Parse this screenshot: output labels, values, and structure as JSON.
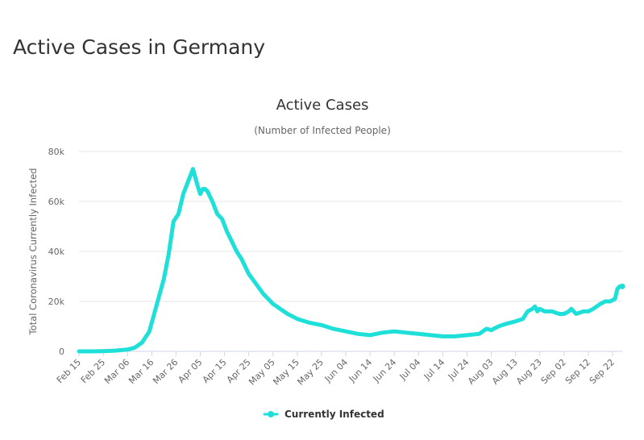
{
  "page": {
    "title": "Active Cases in Germany"
  },
  "colors": {
    "series": "#1ee0d8",
    "grid": "#e6e6e6",
    "axis": "#ccd6eb",
    "text": "#666666"
  },
  "chart_data": {
    "type": "line",
    "title": "Active Cases",
    "subtitle": "(Number of Infected People)",
    "ylabel": "Total Coronavirus Currently Infected",
    "xlabel": "",
    "ylim": [
      0,
      80000
    ],
    "yticks": [
      0,
      20000,
      40000,
      60000,
      80000
    ],
    "ytick_labels": [
      "0",
      "20k",
      "40k",
      "60k",
      "80k"
    ],
    "xtick_labels": [
      "Feb 15",
      "Feb 25",
      "Mar 06",
      "Mar 16",
      "Mar 26",
      "Apr 05",
      "Apr 15",
      "Apr 25",
      "May 05",
      "May 15",
      "May 25",
      "Jun 04",
      "Jun 14",
      "Jun 24",
      "Jul 04",
      "Jul 14",
      "Jul 24",
      "Aug 03",
      "Aug 13",
      "Aug 23",
      "Sep 02",
      "Sep 12",
      "Sep 22"
    ],
    "legend": "bottom-center",
    "grid": true,
    "series": [
      {
        "name": "Currently Infected",
        "x": [
          "Feb 15",
          "Feb 20",
          "Feb 25",
          "Mar 01",
          "Mar 06",
          "Mar 09",
          "Mar 12",
          "Mar 15",
          "Mar 17",
          "Mar 19",
          "Mar 21",
          "Mar 23",
          "Mar 25",
          "Mar 27",
          "Mar 29",
          "Mar 31",
          "Apr 02",
          "Apr 04",
          "Apr 05",
          "Apr 06",
          "Apr 07",
          "Apr 08",
          "Apr 09",
          "Apr 10",
          "Apr 12",
          "Apr 14",
          "Apr 16",
          "Apr 18",
          "Apr 20",
          "Apr 22",
          "Apr 25",
          "Apr 28",
          "May 01",
          "May 03",
          "May 05",
          "May 08",
          "May 11",
          "May 15",
          "May 20",
          "May 25",
          "May 30",
          "Jun 04",
          "Jun 09",
          "Jun 14",
          "Jun 19",
          "Jun 24",
          "Jun 29",
          "Jul 04",
          "Jul 09",
          "Jul 14",
          "Jul 19",
          "Jul 24",
          "Jul 29",
          "Aug 01",
          "Aug 03",
          "Aug 06",
          "Aug 09",
          "Aug 13",
          "Aug 16",
          "Aug 18",
          "Aug 20",
          "Aug 21",
          "Aug 22",
          "Aug 23",
          "Aug 25",
          "Aug 28",
          "Aug 31",
          "Sep 02",
          "Sep 04",
          "Sep 05",
          "Sep 07",
          "Sep 10",
          "Sep 12",
          "Sep 14",
          "Sep 17",
          "Sep 19",
          "Sep 21",
          "Sep 23",
          "Sep 24",
          "Sep 25",
          "Sep 26"
        ],
        "y": [
          0,
          0,
          100,
          300,
          700,
          1500,
          3500,
          8000,
          15000,
          22000,
          29000,
          39000,
          52000,
          55000,
          63000,
          68000,
          73000,
          66000,
          63000,
          65000,
          65000,
          64000,
          62000,
          60000,
          55000,
          53000,
          48000,
          44000,
          40000,
          37000,
          31000,
          27000,
          23000,
          21000,
          19000,
          17000,
          15000,
          13000,
          11500,
          10500,
          9000,
          8000,
          7000,
          6500,
          7500,
          8000,
          7500,
          7000,
          6500,
          6000,
          6000,
          6500,
          7000,
          9000,
          8500,
          10000,
          11000,
          12000,
          13000,
          16000,
          17000,
          18000,
          16000,
          17000,
          16000,
          16000,
          15000,
          15000,
          16000,
          17000,
          15000,
          16000,
          16000,
          17000,
          19000,
          20000,
          20000,
          21000,
          25000,
          26000,
          26000
        ]
      }
    ]
  }
}
